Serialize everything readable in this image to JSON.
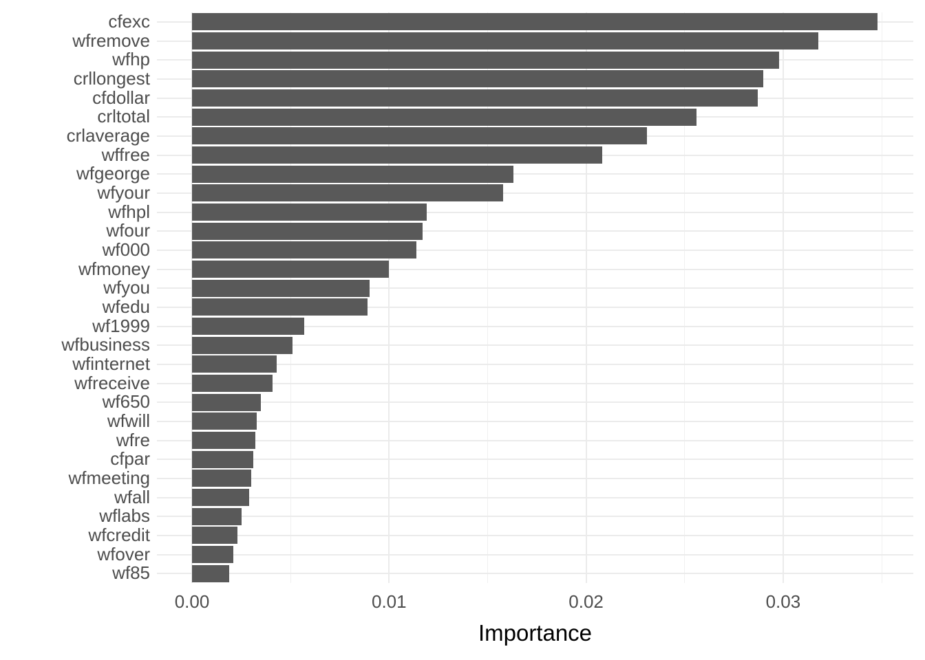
{
  "chart_data": {
    "type": "bar",
    "orientation": "horizontal",
    "title": "",
    "xlabel": "Importance",
    "ylabel": "",
    "categories": [
      "cfexc",
      "wfremove",
      "wfhp",
      "crllongest",
      "cfdollar",
      "crltotal",
      "crlaverage",
      "wffree",
      "wfgeorge",
      "wfyour",
      "wfhpl",
      "wfour",
      "wf000",
      "wfmoney",
      "wfyou",
      "wfedu",
      "wf1999",
      "wfbusiness",
      "wfinternet",
      "wfreceive",
      "wf650",
      "wfwill",
      "wfre",
      "cfpar",
      "wfmeeting",
      "wfall",
      "wflabs",
      "wfcredit",
      "wfover",
      "wf85"
    ],
    "values": [
      0.0348,
      0.0318,
      0.0298,
      0.029,
      0.0287,
      0.0256,
      0.0231,
      0.0208,
      0.0163,
      0.0158,
      0.0119,
      0.0117,
      0.0114,
      0.01,
      0.009,
      0.0089,
      0.0057,
      0.0051,
      0.0043,
      0.0041,
      0.0035,
      0.0033,
      0.0032,
      0.0031,
      0.003,
      0.0029,
      0.0025,
      0.0023,
      0.0021,
      0.0019
    ],
    "x_ticks": [
      "0.00",
      "0.01",
      "0.02",
      "0.03"
    ],
    "x_tick_values": [
      0,
      0.01,
      0.02,
      0.03
    ],
    "x_minor_step": 0.005,
    "xlim": [
      -0.00178,
      0.0366
    ],
    "grid": "major+minor",
    "legend": "none",
    "colors": {
      "bar": "#595959",
      "grid_major": "#ebebeb",
      "grid_minor": "#f0f0f0",
      "axis_text": "#4d4d4d",
      "axis_title": "#000000",
      "background": "#ffffff"
    }
  }
}
